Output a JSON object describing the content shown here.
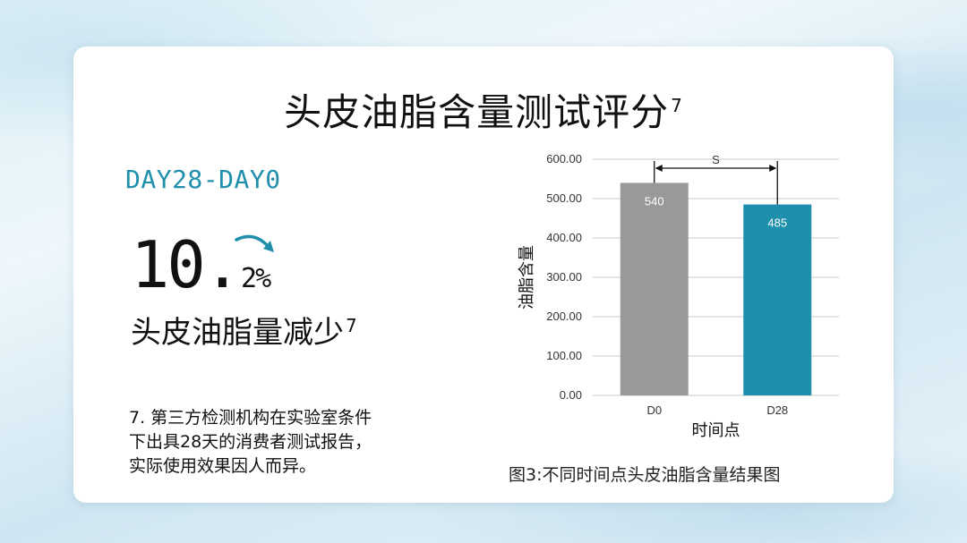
{
  "page": {
    "title": "头皮油脂含量测试评分",
    "title_sup": "7",
    "period": "DAY28-DAY0",
    "percent_main": "10.",
    "percent_tail": "2%",
    "subtitle": "头皮油脂量减少",
    "subtitle_sup": "7",
    "footnote_lines": [
      "7. 第三方检测机构在实验室条件",
      "下出具28天的消费者测试报告，",
      "实际使用效果因人而异。"
    ],
    "caption": "图3:不同时间点头皮油脂含量结果图",
    "colors": {
      "accent": "#1f8fab",
      "bar_d0": "#999999",
      "bar_d28": "#1e90ad"
    }
  },
  "chart_data": {
    "type": "bar",
    "categories": [
      "D0",
      "D28"
    ],
    "values": [
      540,
      485
    ],
    "data_labels": [
      "540",
      "485"
    ],
    "bar_colors": [
      "#999999",
      "#1e90ad"
    ],
    "xlabel": "时间点",
    "ylabel": "油脂含量",
    "ylim": [
      0,
      600
    ],
    "yticks": [
      "0.00",
      "100.00",
      "200.00",
      "300.00",
      "400.00",
      "500.00",
      "600.00"
    ],
    "grid": true,
    "significance": {
      "between": [
        "D0",
        "D28"
      ],
      "label": "S"
    }
  }
}
